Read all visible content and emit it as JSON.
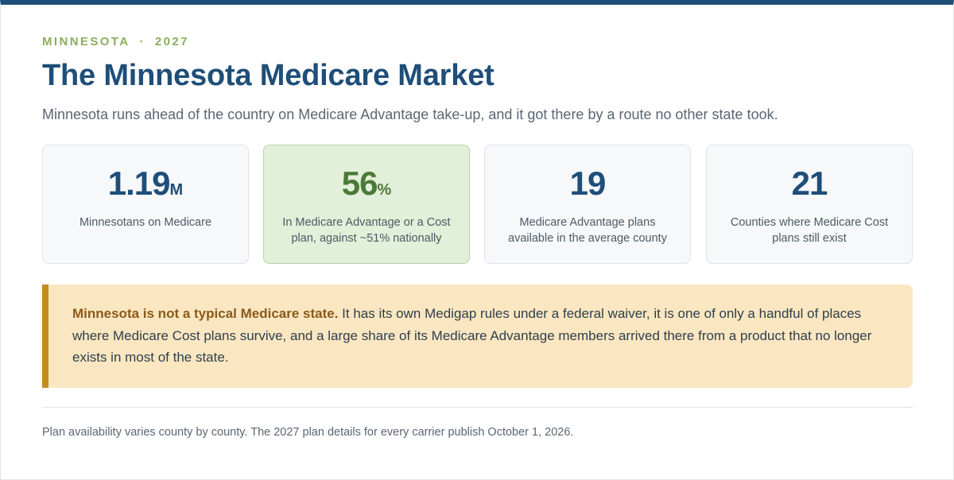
{
  "header": {
    "state": "MINNESOTA",
    "separator": "·",
    "year": "2027",
    "title": "The Minnesota Medicare Market",
    "subtitle": "Minnesota runs ahead of the country on Medicare Advantage take-up, and it got there by a route no other state took."
  },
  "stats": [
    {
      "value": "1.19",
      "unit": "M",
      "label": "Minnesotans on Medicare"
    },
    {
      "value": "56",
      "unit": "%",
      "label": "In Medicare Advantage or a Cost plan, against ~51% nationally"
    },
    {
      "value": "19",
      "unit": "",
      "label": "Medicare Advantage plans available in the average county"
    },
    {
      "value": "21",
      "unit": "",
      "label": "Counties where Medicare Cost plans still exist"
    }
  ],
  "callout": {
    "lead": "Minnesota is not a typical Medicare state.",
    "body": " It has its own Medigap rules under a federal waiver, it is one of only a handful of places where Medicare Cost plans survive, and a large share of its Medicare Advantage members arrived there from a product that no longer exists in most of the state."
  },
  "footnote": "Plan availability varies county by county. The 2027 plan details for every carrier publish October 1, 2026.",
  "colors": {
    "brand": "#1f4e79",
    "accent_green": "#4a7a37",
    "eyebrow": "#8bae5e",
    "callout_bg": "#fae7c1",
    "callout_border": "#c88a1e"
  }
}
